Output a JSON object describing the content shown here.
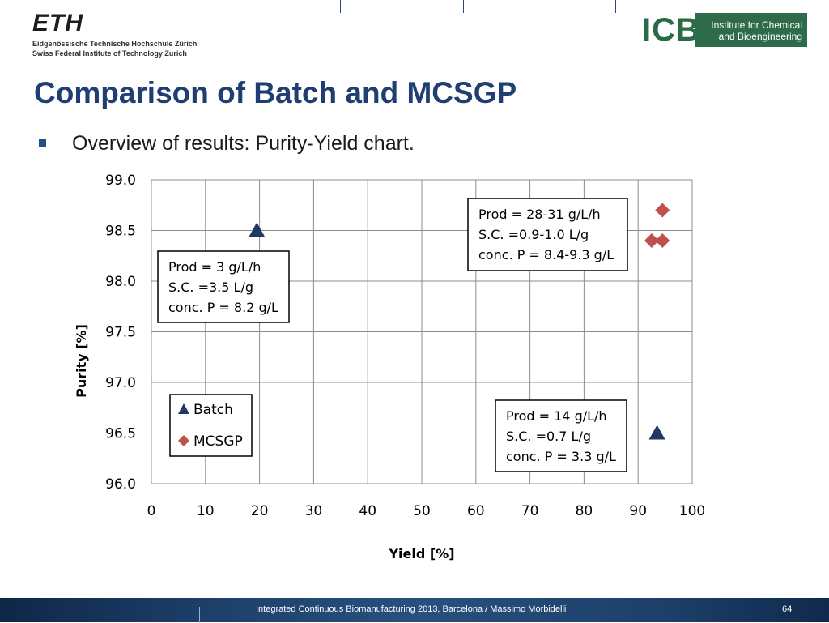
{
  "header": {
    "eth_word": "ETH",
    "eth_line1": "Eidgenössische Technische Hochschule Zürich",
    "eth_line2": "Swiss Federal Institute of Technology Zurich",
    "icb_letters": "ICB",
    "icb_line1": "Institute for Chemical",
    "icb_line2": "and Bioengineering"
  },
  "slide": {
    "title": "Comparison of Batch and MCSGP",
    "bullet": "Overview of results: Purity-Yield chart."
  },
  "chart_data": {
    "type": "scatter",
    "xlabel": "Yield [%]",
    "ylabel": "Purity [%]",
    "xlim": [
      0,
      100
    ],
    "ylim": [
      96.0,
      99.0
    ],
    "x_ticks": [
      "0",
      "10",
      "20",
      "30",
      "40",
      "50",
      "60",
      "70",
      "80",
      "90",
      "100"
    ],
    "y_ticks": [
      "96.0",
      "96.5",
      "97.0",
      "97.5",
      "98.0",
      "98.5",
      "99.0"
    ],
    "grid": true,
    "legend_position": "bottom-left",
    "series": [
      {
        "name": "Batch",
        "marker": "triangle",
        "color": "#1f3864",
        "points": [
          [
            19.5,
            98.5
          ],
          [
            93.5,
            96.5
          ]
        ]
      },
      {
        "name": "MCSGP",
        "marker": "diamond",
        "color": "#c0504d",
        "points": [
          [
            94.5,
            98.7
          ],
          [
            92.5,
            98.4
          ],
          [
            94.5,
            98.4
          ]
        ]
      }
    ],
    "annotations": [
      {
        "lines": [
          "Prod = 28-31 g/L/h",
          "S.C. =0.9-1.0 L/g",
          "conc. P = 8.4-9.3 g/L"
        ]
      },
      {
        "lines": [
          "Prod = 3 g/L/h",
          "S.C. =3.5 L/g",
          "conc. P = 8.2 g/L"
        ]
      },
      {
        "lines": [
          "Prod = 14 g/L/h",
          "S.C. =0.7 L/g",
          "conc. P = 3.3 g/L"
        ]
      }
    ]
  },
  "footer": {
    "text": "Integrated Continuous  Biomanufacturing  2013, Barcelona / Massimo Morbidelli",
    "page": "64"
  }
}
